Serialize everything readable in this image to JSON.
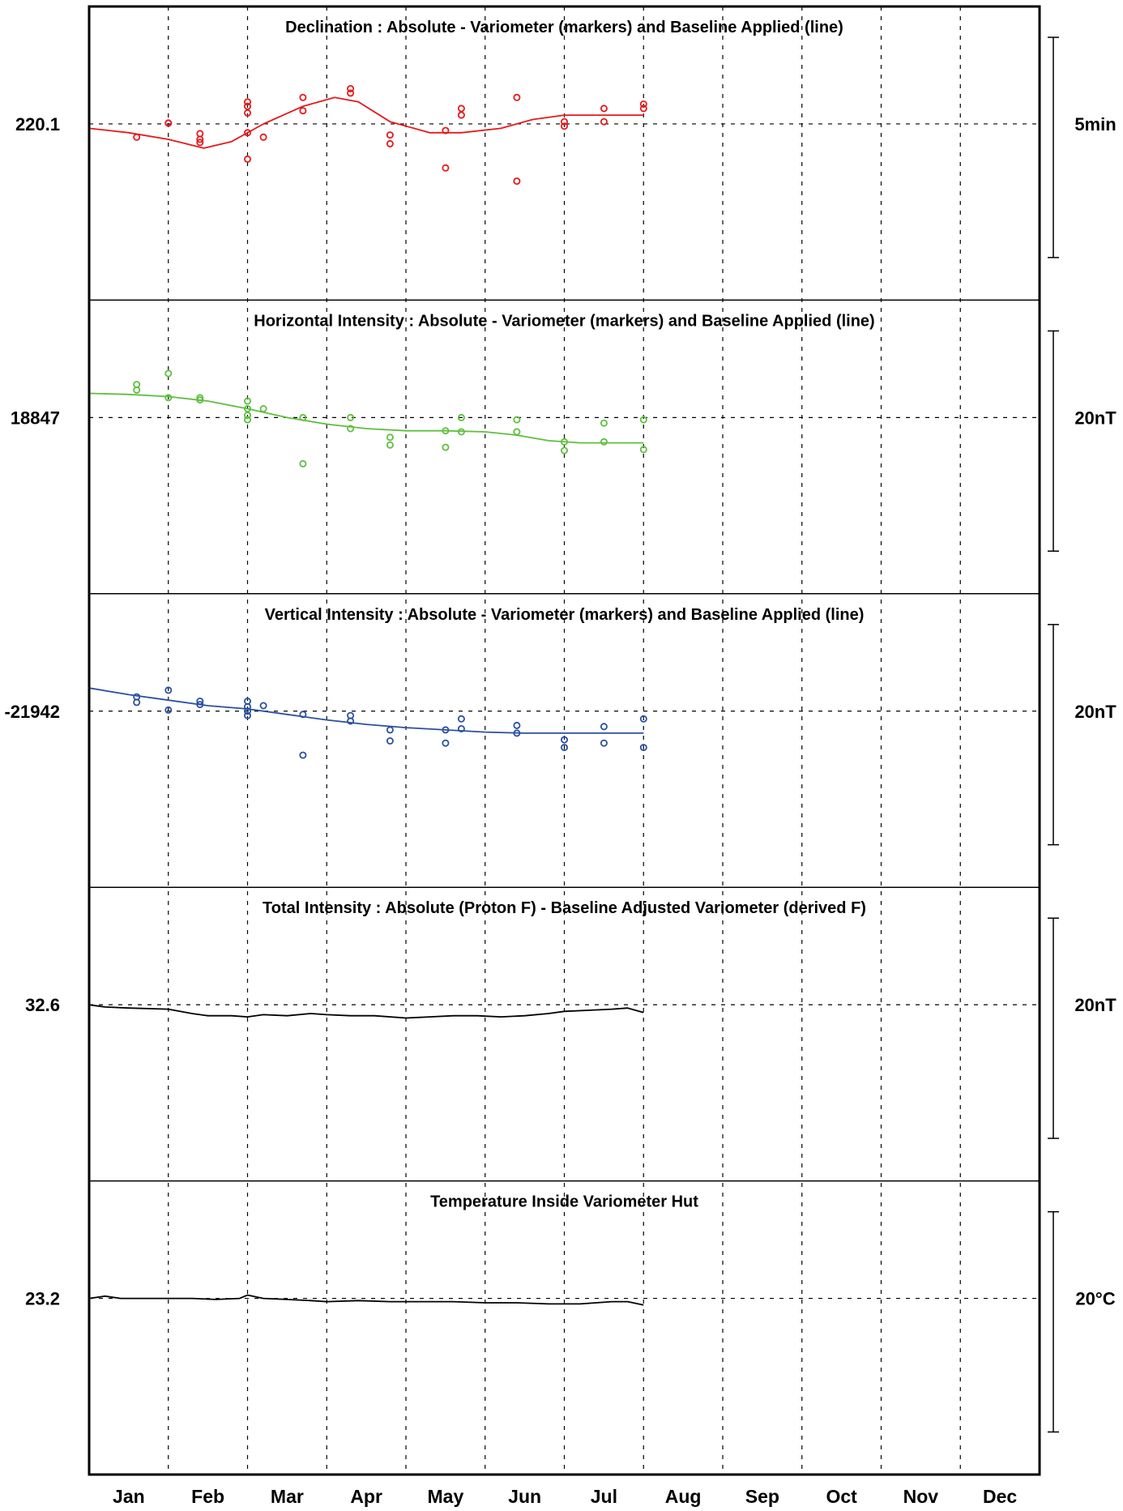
{
  "chart_data": {
    "type": "line",
    "categories": [
      "Jan",
      "Feb",
      "Mar",
      "Apr",
      "May",
      "Jun",
      "Jul",
      "Aug",
      "Sep",
      "Oct",
      "Nov",
      "Dec"
    ],
    "grid": true,
    "panels": [
      {
        "id": "declination",
        "title": "Declination : Absolute - Variometer (markers) and Baseline Applied (line)",
        "baseline_label": "220.1",
        "scale_label": "5min",
        "color": "#e41a1c",
        "half_range": 2.5,
        "markers": [
          [
            1.6,
            -0.3
          ],
          [
            2.0,
            0.02
          ],
          [
            2.4,
            -0.22
          ],
          [
            2.4,
            -0.35
          ],
          [
            2.4,
            -0.42
          ],
          [
            2.0,
            0.02
          ],
          [
            3.0,
            0.25
          ],
          [
            3.0,
            0.4
          ],
          [
            3.0,
            0.5
          ],
          [
            3.0,
            -0.8
          ],
          [
            3.0,
            -0.2
          ],
          [
            3.2,
            -0.3
          ],
          [
            3.7,
            0.3
          ],
          [
            3.7,
            0.6
          ],
          [
            4.3,
            0.7
          ],
          [
            4.3,
            0.8
          ],
          [
            4.8,
            -0.25
          ],
          [
            4.8,
            -0.45
          ],
          [
            5.5,
            -0.15
          ],
          [
            5.5,
            -1.0
          ],
          [
            5.7,
            0.2
          ],
          [
            5.7,
            0.35
          ],
          [
            6.4,
            0.6
          ],
          [
            6.4,
            -1.3
          ],
          [
            7.0,
            -0.05
          ],
          [
            7.0,
            0.05
          ],
          [
            7.5,
            0.35
          ],
          [
            7.5,
            0.05
          ],
          [
            8.0,
            0.35
          ],
          [
            8.0,
            0.45
          ]
        ],
        "line": [
          [
            1.0,
            -0.1
          ],
          [
            1.5,
            -0.2
          ],
          [
            2.0,
            -0.35
          ],
          [
            2.45,
            -0.55
          ],
          [
            2.8,
            -0.4
          ],
          [
            3.2,
            0.0
          ],
          [
            3.7,
            0.4
          ],
          [
            4.1,
            0.6
          ],
          [
            4.4,
            0.5
          ],
          [
            4.8,
            0.05
          ],
          [
            5.3,
            -0.2
          ],
          [
            5.7,
            -0.2
          ],
          [
            6.2,
            -0.1
          ],
          [
            6.6,
            0.1
          ],
          [
            7.0,
            0.2
          ],
          [
            8.0,
            0.2
          ]
        ]
      },
      {
        "id": "horizontal-intensity",
        "title": "Horizontal Intensity : Absolute - Variometer (markers) and Baseline Applied (line)",
        "baseline_label": "18847",
        "scale_label": "20nT",
        "color": "#5fbf3f",
        "half_range": 10,
        "markers": [
          [
            1.6,
            3.0
          ],
          [
            1.6,
            2.5
          ],
          [
            2.0,
            4.0
          ],
          [
            2.0,
            1.8
          ],
          [
            2.4,
            1.8
          ],
          [
            2.4,
            1.6
          ],
          [
            3.0,
            1.5
          ],
          [
            3.0,
            0.8
          ],
          [
            3.0,
            0.2
          ],
          [
            3.0,
            -0.2
          ],
          [
            3.2,
            0.8
          ],
          [
            3.7,
            0.0
          ],
          [
            3.7,
            -4.2
          ],
          [
            4.3,
            0.0
          ],
          [
            4.3,
            -1.0
          ],
          [
            4.8,
            -1.8
          ],
          [
            4.8,
            -2.5
          ],
          [
            5.5,
            -1.2
          ],
          [
            5.5,
            -2.7
          ],
          [
            5.7,
            0.0
          ],
          [
            5.7,
            -1.3
          ],
          [
            6.4,
            -0.2
          ],
          [
            6.4,
            -1.3
          ],
          [
            7.0,
            -2.2
          ],
          [
            7.0,
            -3.0
          ],
          [
            7.5,
            -0.5
          ],
          [
            7.5,
            -2.2
          ],
          [
            8.0,
            -0.2
          ],
          [
            8.0,
            -2.9
          ]
        ],
        "line": [
          [
            1.0,
            2.2
          ],
          [
            1.5,
            2.1
          ],
          [
            2.0,
            1.9
          ],
          [
            2.5,
            1.5
          ],
          [
            3.0,
            0.8
          ],
          [
            3.5,
            0.0
          ],
          [
            4.0,
            -0.6
          ],
          [
            4.5,
            -1.0
          ],
          [
            5.0,
            -1.2
          ],
          [
            5.5,
            -1.2
          ],
          [
            6.0,
            -1.3
          ],
          [
            6.4,
            -1.6
          ],
          [
            6.8,
            -2.1
          ],
          [
            7.2,
            -2.3
          ],
          [
            8.0,
            -2.3
          ]
        ]
      },
      {
        "id": "vertical-intensity",
        "title": "Vertical Intensity : Absolute - Variometer (markers) and Baseline Applied (line)",
        "baseline_label": "-21942",
        "scale_label": "20nT",
        "color": "#2b50a0",
        "half_range": 10,
        "markers": [
          [
            1.6,
            1.3
          ],
          [
            1.6,
            0.8
          ],
          [
            2.0,
            1.9
          ],
          [
            2.0,
            0.1
          ],
          [
            2.4,
            0.9
          ],
          [
            2.4,
            0.6
          ],
          [
            3.0,
            0.9
          ],
          [
            3.0,
            0.4
          ],
          [
            3.0,
            0.0
          ],
          [
            3.0,
            -0.4
          ],
          [
            3.2,
            0.5
          ],
          [
            3.7,
            -0.3
          ],
          [
            3.7,
            -4.0
          ],
          [
            4.3,
            -0.4
          ],
          [
            4.3,
            -0.9
          ],
          [
            4.8,
            -1.7
          ],
          [
            4.8,
            -2.7
          ],
          [
            5.5,
            -1.7
          ],
          [
            5.5,
            -2.9
          ],
          [
            5.7,
            -0.7
          ],
          [
            5.7,
            -1.6
          ],
          [
            6.4,
            -1.3
          ],
          [
            6.4,
            -2.0
          ],
          [
            7.0,
            -2.6
          ],
          [
            7.0,
            -3.3
          ],
          [
            7.5,
            -1.4
          ],
          [
            7.5,
            -2.9
          ],
          [
            8.0,
            -0.7
          ],
          [
            8.0,
            -3.3
          ]
        ],
        "line": [
          [
            1.0,
            2.1
          ],
          [
            1.5,
            1.5
          ],
          [
            2.0,
            1.0
          ],
          [
            2.5,
            0.5
          ],
          [
            3.0,
            0.2
          ],
          [
            3.5,
            -0.3
          ],
          [
            4.0,
            -0.8
          ],
          [
            4.5,
            -1.2
          ],
          [
            5.0,
            -1.5
          ],
          [
            5.5,
            -1.7
          ],
          [
            6.0,
            -1.9
          ],
          [
            6.5,
            -2.0
          ],
          [
            7.0,
            -2.0
          ],
          [
            8.0,
            -2.0
          ]
        ]
      },
      {
        "id": "total-intensity",
        "title": "Total Intensity : Absolute (Proton F) - Baseline Adjusted Variometer (derived F)",
        "baseline_label": "32.6",
        "scale_label": "20nT",
        "color": "#000000",
        "half_range": 10,
        "line": [
          [
            1.0,
            0.0
          ],
          [
            1.2,
            -0.2
          ],
          [
            1.5,
            -0.3
          ],
          [
            2.0,
            -0.4
          ],
          [
            2.3,
            -0.8
          ],
          [
            2.5,
            -1.0
          ],
          [
            2.8,
            -1.0
          ],
          [
            3.0,
            -1.1
          ],
          [
            3.2,
            -0.9
          ],
          [
            3.5,
            -1.0
          ],
          [
            3.8,
            -0.8
          ],
          [
            4.0,
            -0.9
          ],
          [
            4.3,
            -1.0
          ],
          [
            4.6,
            -1.0
          ],
          [
            5.0,
            -1.2
          ],
          [
            5.3,
            -1.1
          ],
          [
            5.6,
            -1.0
          ],
          [
            5.9,
            -1.0
          ],
          [
            6.2,
            -1.1
          ],
          [
            6.5,
            -1.0
          ],
          [
            6.8,
            -0.8
          ],
          [
            7.0,
            -0.6
          ],
          [
            7.3,
            -0.5
          ],
          [
            7.6,
            -0.4
          ],
          [
            7.8,
            -0.3
          ],
          [
            8.0,
            -0.7
          ]
        ]
      },
      {
        "id": "temperature",
        "title": "Temperature Inside Variometer Hut",
        "baseline_label": "23.2",
        "scale_label": "20°C",
        "color": "#000000",
        "half_range": 10,
        "line": [
          [
            1.0,
            0.0
          ],
          [
            1.2,
            0.2
          ],
          [
            1.4,
            0.0
          ],
          [
            1.7,
            0.0
          ],
          [
            2.0,
            0.0
          ],
          [
            2.3,
            0.0
          ],
          [
            2.6,
            -0.1
          ],
          [
            2.9,
            0.0
          ],
          [
            3.0,
            0.3
          ],
          [
            3.2,
            0.0
          ],
          [
            3.5,
            -0.1
          ],
          [
            3.8,
            -0.2
          ],
          [
            4.0,
            -0.3
          ],
          [
            4.4,
            -0.2
          ],
          [
            4.8,
            -0.3
          ],
          [
            5.2,
            -0.3
          ],
          [
            5.6,
            -0.3
          ],
          [
            6.0,
            -0.4
          ],
          [
            6.4,
            -0.4
          ],
          [
            6.8,
            -0.5
          ],
          [
            7.2,
            -0.5
          ],
          [
            7.6,
            -0.3
          ],
          [
            7.8,
            -0.3
          ],
          [
            8.0,
            -0.6
          ]
        ]
      }
    ]
  }
}
